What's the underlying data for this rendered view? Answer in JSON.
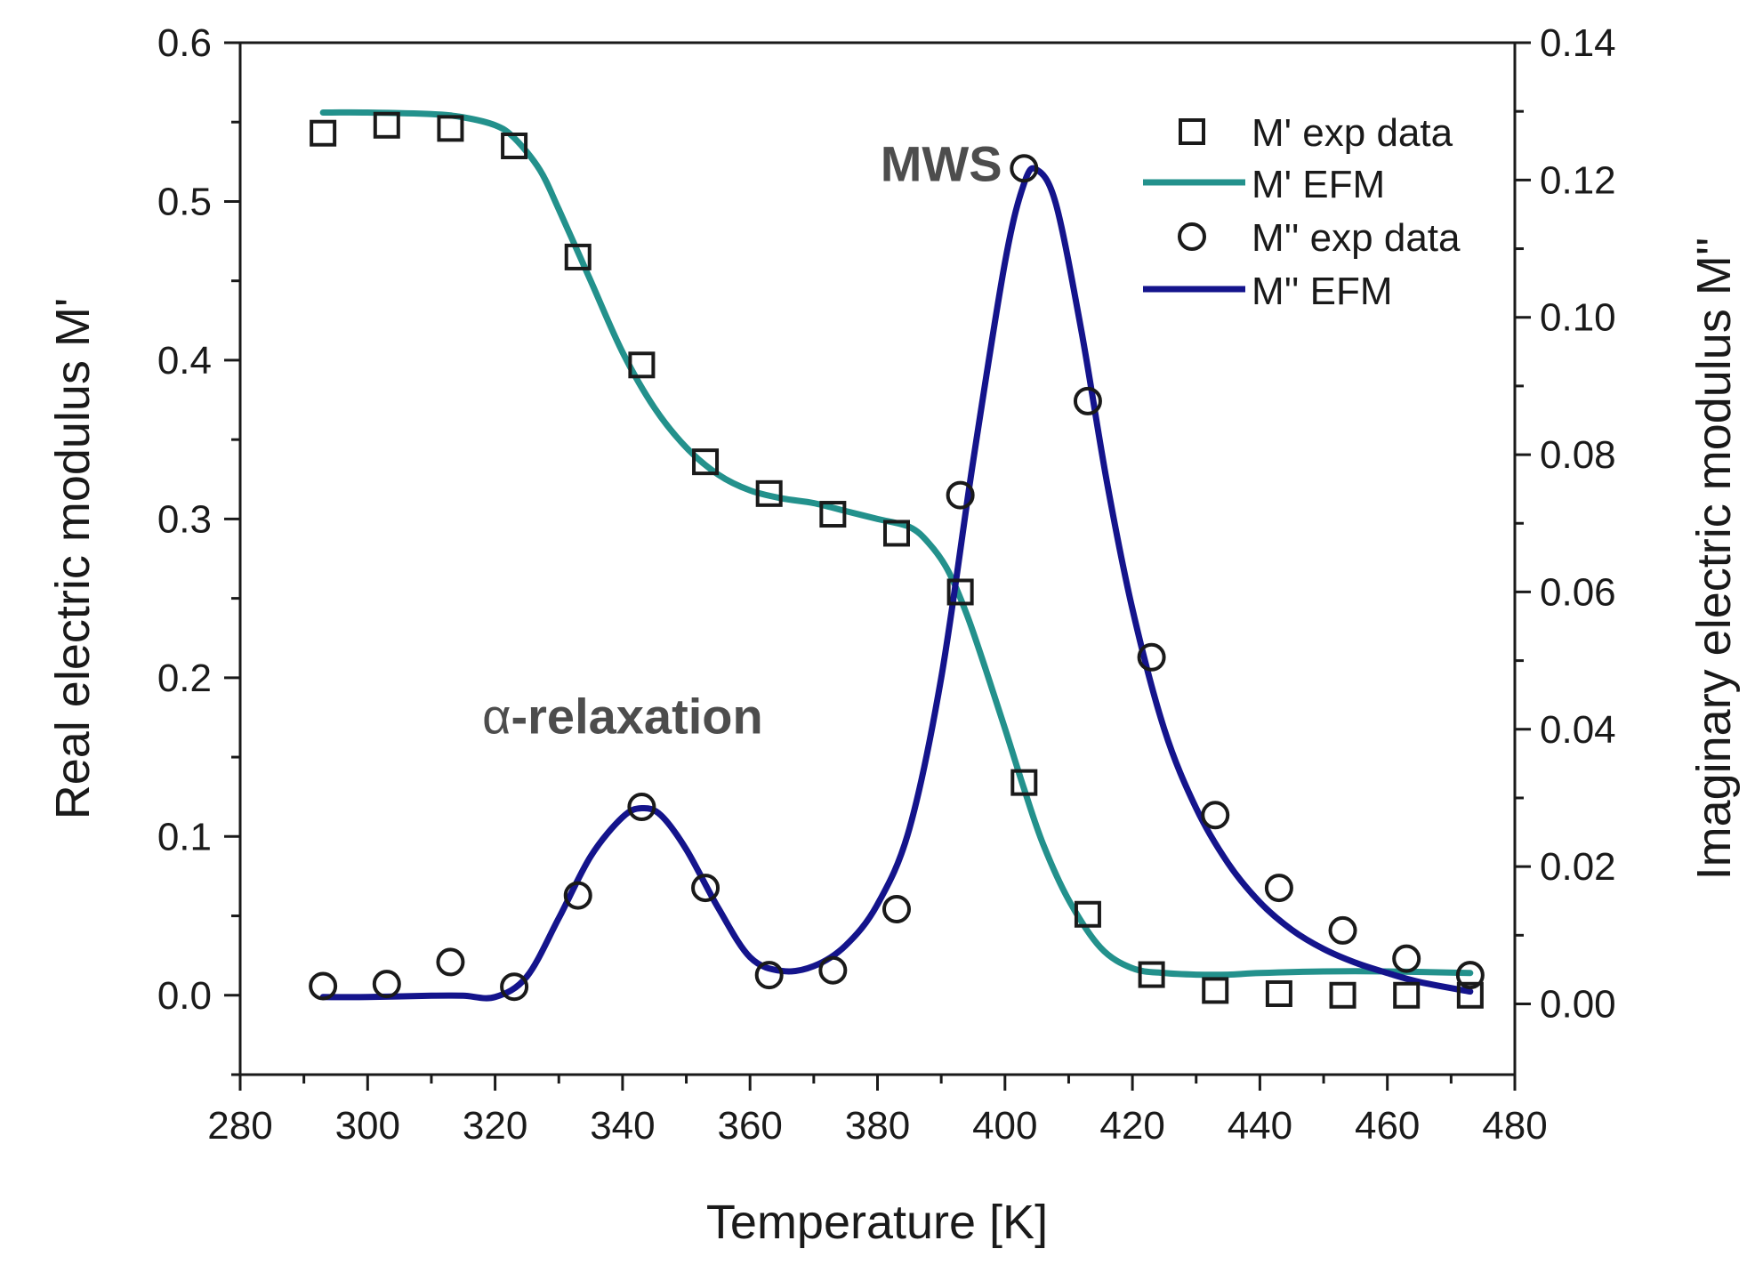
{
  "chart_data": {
    "type": "line",
    "title": "",
    "xlabel": "Temperature [K]",
    "ylabel": "Real electric modulus M'",
    "y2label": "Imaginary electric modulus M''",
    "xlim": [
      280,
      480
    ],
    "ylim": [
      -0.05,
      0.6
    ],
    "y2lim": [
      -0.0103,
      0.14
    ],
    "xticks": [
      280,
      300,
      320,
      340,
      360,
      380,
      400,
      420,
      440,
      460,
      480
    ],
    "yticks": [
      0.0,
      0.1,
      0.2,
      0.3,
      0.4,
      0.5,
      0.6
    ],
    "y2ticks": [
      0.0,
      0.02,
      0.04,
      0.06,
      0.08,
      0.1,
      0.12,
      0.14
    ],
    "xtick_labels": [
      "280",
      "300",
      "320",
      "340",
      "360",
      "380",
      "400",
      "420",
      "440",
      "460",
      "480"
    ],
    "ytick_labels": [
      "0.0",
      "0.1",
      "0.2",
      "0.3",
      "0.4",
      "0.5",
      "0.6"
    ],
    "y2tick_labels": [
      "0.00",
      "0.02",
      "0.04",
      "0.06",
      "0.08",
      "0.10",
      "0.12",
      "0.14"
    ],
    "legend": {
      "position": "top-right",
      "entries": [
        "M' exp data",
        "M' EFM",
        "M'' exp data",
        "M'' EFM"
      ]
    },
    "annotations": [
      {
        "greek": "α",
        "text": "-relaxation",
        "x": 340,
        "y": 0.165,
        "axis": "left"
      },
      {
        "greek": "",
        "text": "MWS",
        "x": 390,
        "y": 0.513,
        "axis": "left"
      }
    ],
    "series": [
      {
        "name": "M' exp data",
        "kind": "scatter",
        "marker": "square",
        "axis": "left",
        "color": "#1a1a1a",
        "x": [
          293,
          303,
          313,
          323,
          333,
          343,
          353,
          363,
          373,
          383,
          393,
          403,
          413,
          423,
          433,
          443,
          453,
          463,
          473
        ],
        "values": [
          0.543,
          0.548,
          0.546,
          0.535,
          0.465,
          0.397,
          0.336,
          0.316,
          0.303,
          0.291,
          0.254,
          0.134,
          0.051,
          0.013,
          0.003,
          0.001,
          0.0,
          0.0,
          0.0
        ]
      },
      {
        "name": "M' EFM",
        "kind": "line",
        "axis": "left",
        "color": "#23918c",
        "x": [
          293,
          300,
          310,
          315,
          320,
          323,
          327,
          330,
          335,
          340,
          345,
          350,
          355,
          360,
          365,
          370,
          375,
          380,
          385,
          388,
          391,
          394,
          397,
          400,
          403,
          406,
          410,
          415,
          420,
          425,
          430,
          435,
          440,
          450,
          460,
          473
        ],
        "values": [
          0.556,
          0.556,
          0.555,
          0.553,
          0.548,
          0.54,
          0.52,
          0.495,
          0.45,
          0.405,
          0.37,
          0.345,
          0.328,
          0.318,
          0.313,
          0.31,
          0.305,
          0.3,
          0.295,
          0.285,
          0.268,
          0.24,
          0.205,
          0.168,
          0.13,
          0.095,
          0.06,
          0.03,
          0.017,
          0.014,
          0.013,
          0.013,
          0.014,
          0.015,
          0.015,
          0.014
        ]
      },
      {
        "name": "M'' exp data",
        "kind": "scatter",
        "marker": "circle",
        "axis": "right",
        "color": "#1a1a1a",
        "x": [
          293,
          303,
          313,
          323,
          333,
          343,
          353,
          363,
          373,
          383,
          393,
          403,
          413,
          423,
          433,
          443,
          453,
          463,
          473
        ],
        "values": [
          0.0026,
          0.0029,
          0.0061,
          0.0025,
          0.0158,
          0.0287,
          0.0169,
          0.0042,
          0.0049,
          0.0138,
          0.0741,
          0.1217,
          0.0878,
          0.0505,
          0.0275,
          0.0169,
          0.0107,
          0.0066,
          0.0042
        ]
      },
      {
        "name": "M'' EFM",
        "kind": "line",
        "axis": "right",
        "color": "#14148c",
        "x": [
          293,
          300,
          310,
          315,
          320,
          325,
          330,
          335,
          340,
          343,
          346,
          350,
          355,
          360,
          365,
          370,
          375,
          380,
          385,
          390,
          395,
          400,
          403,
          405,
          408,
          412,
          416,
          420,
          425,
          430,
          435,
          440,
          445,
          450,
          455,
          460,
          465,
          473
        ],
        "values": [
          0.001,
          0.001,
          0.0012,
          0.0012,
          0.001,
          0.004,
          0.0125,
          0.0215,
          0.0272,
          0.0285,
          0.0275,
          0.0225,
          0.014,
          0.0068,
          0.0048,
          0.0055,
          0.0085,
          0.0145,
          0.0255,
          0.0475,
          0.079,
          0.108,
          0.1195,
          0.1215,
          0.1165,
          0.098,
          0.076,
          0.0575,
          0.04,
          0.0285,
          0.0205,
          0.0148,
          0.0108,
          0.008,
          0.006,
          0.0045,
          0.0032,
          0.0018
        ]
      }
    ]
  }
}
